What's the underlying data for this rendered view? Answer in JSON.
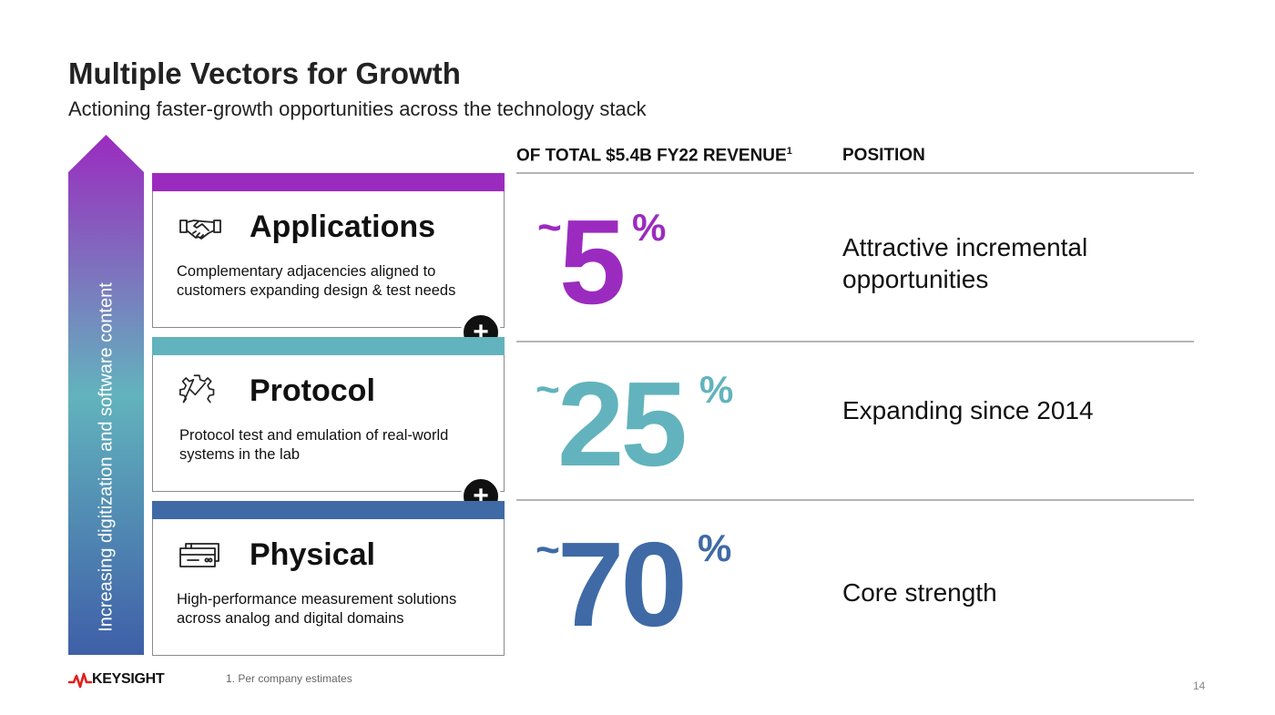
{
  "slide": {
    "title": "Multiple Vectors for Growth",
    "subtitle": "Actioning faster-growth opportunities across the technology stack",
    "arrow_label": "Increasing digitization and software content",
    "headers": {
      "revenue": "OF TOTAL $5.4B FY22 REVENUE",
      "revenue_sup": "1",
      "position": "POSITION"
    },
    "vectors": [
      {
        "name": "Applications",
        "description": "Complementary adjacencies aligned to customers expanding design & test needs",
        "icon": "handshake-icon",
        "color": "#9b2bbf",
        "tilde": "~",
        "value": "5",
        "pct": "%",
        "position": "Attractive incremental opportunities"
      },
      {
        "name": "Protocol",
        "description": "Protocol test and emulation of real-world systems in the lab",
        "icon": "gear-check-icon",
        "color": "#62b3bd",
        "tilde": "~",
        "value": "25",
        "pct": "%",
        "position": "Expanding since 2014"
      },
      {
        "name": "Physical",
        "description": "High-performance measurement solutions across analog and digital domains",
        "icon": "instrument-icon",
        "color": "#3f6aa6",
        "tilde": "~",
        "value": "70",
        "pct": "%",
        "position": "Core strength"
      }
    ],
    "plus_symbol": "+",
    "footnote": "1. Per company estimates",
    "page_number": "14",
    "logo_text": "KEYSIGHT"
  }
}
